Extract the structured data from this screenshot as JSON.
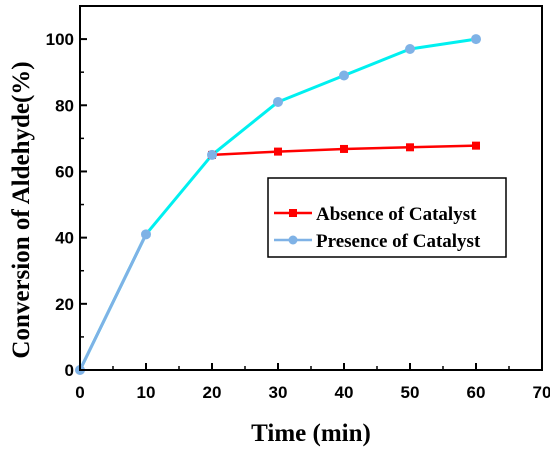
{
  "chart_data": {
    "type": "line",
    "xlabel": "Time (min)",
    "ylabel": "Conversion of Aldehyde(%)",
    "xlim": [
      0,
      70
    ],
    "ylim": [
      0,
      110
    ],
    "xticks": [
      0,
      10,
      20,
      30,
      40,
      50,
      60,
      70
    ],
    "yticks": [
      0,
      20,
      40,
      60,
      80,
      100
    ],
    "grid": false,
    "legend_position": "center-right",
    "series": [
      {
        "name": "Absence of Catalyst",
        "color": "#ff0000",
        "marker": "square",
        "x": [
          20,
          30,
          40,
          50,
          60
        ],
        "y": [
          65,
          66,
          66.8,
          67.3,
          67.8
        ]
      },
      {
        "name": "Presence of Catalyst",
        "color": "#00f0f0",
        "marker": "circle",
        "x": [
          0,
          10,
          20,
          30,
          40,
          50,
          60
        ],
        "y": [
          0,
          41,
          65,
          81,
          89,
          97,
          100
        ]
      }
    ]
  }
}
